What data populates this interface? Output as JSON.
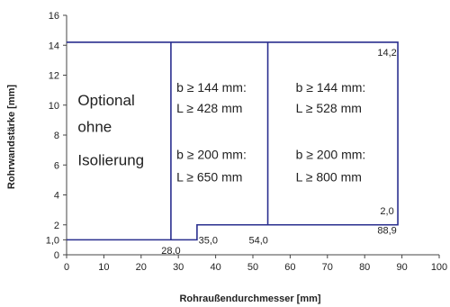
{
  "chart_data": {
    "type": "line",
    "xlabel": "Rohraußendurchmesser [mm]",
    "ylabel": "Rohrwandstärke [mm]",
    "xlim": [
      0,
      100
    ],
    "ylim": [
      0,
      16
    ],
    "xticks": [
      "0",
      "10",
      "20",
      "30",
      "40",
      "50",
      "60",
      "70",
      "80",
      "90",
      "100"
    ],
    "yticks": [
      "0",
      "2",
      "4",
      "6",
      "8",
      "10",
      "12",
      "14",
      "16"
    ],
    "ytick_extra": "1,0",
    "outline": [
      [
        0,
        1.0
      ],
      [
        35.0,
        1.0
      ],
      [
        35.0,
        2.0
      ],
      [
        88.9,
        2.0
      ],
      [
        88.9,
        14.2
      ],
      [
        0,
        14.2
      ]
    ],
    "dividers": [
      {
        "x": 28.0,
        "y_from": 1.0,
        "y_to": 14.2
      },
      {
        "x": 54.0,
        "y_from": 2.0,
        "y_to": 14.2
      }
    ],
    "point_labels": [
      {
        "text": "14,2",
        "x": 86,
        "y": 13.3
      },
      {
        "text": "2,0",
        "x": 86,
        "y": 2.7
      },
      {
        "text": "88,9",
        "x": 86,
        "y": 1.4
      },
      {
        "text": "28,0",
        "x": 28,
        "y": 0.05
      },
      {
        "text": "35,0",
        "x": 38,
        "y": 0.75
      },
      {
        "text": "54,0",
        "x": 51.5,
        "y": 0.75
      }
    ],
    "regions": [
      {
        "lines": [
          "Optional",
          "ohne",
          "Isolierung"
        ],
        "x": 3,
        "y": [
          10.0,
          8.2,
          6.0
        ]
      },
      {
        "lines": [
          "b ≥ 144 mm:",
          "L ≥ 428 mm",
          "b ≥ 200 mm:",
          "L ≥ 650 mm"
        ],
        "x": 29.5,
        "y": [
          10.9,
          9.5,
          6.4,
          4.9
        ]
      },
      {
        "lines": [
          "b ≥ 144 mm:",
          "L ≥ 528 mm",
          "b ≥ 200 mm:",
          "L ≥ 800 mm"
        ],
        "x": 61.5,
        "y": [
          10.9,
          9.5,
          6.4,
          4.9
        ]
      }
    ]
  }
}
